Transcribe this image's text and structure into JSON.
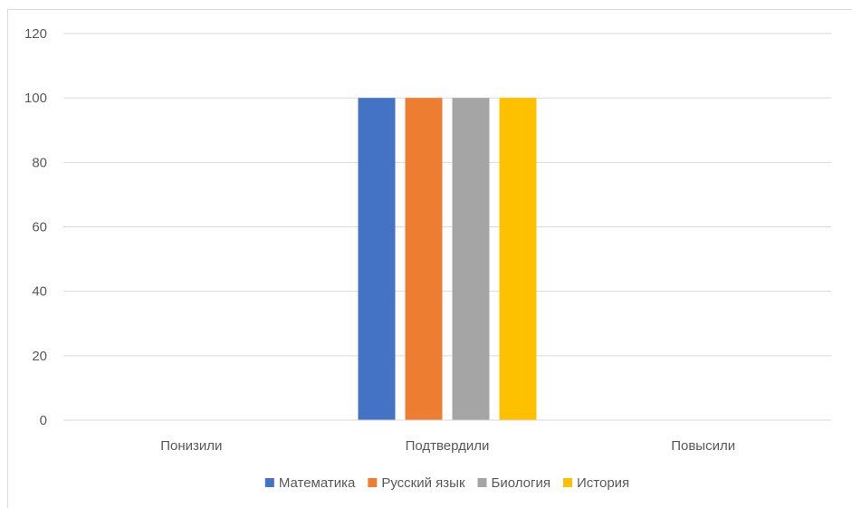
{
  "chart_data": {
    "type": "bar",
    "categories": [
      "Понизили",
      "Подтвердили",
      "Повысили"
    ],
    "series": [
      {
        "name": "Математика",
        "values": [
          0,
          100,
          0
        ],
        "color": "#4472C4"
      },
      {
        "name": "Русский язык",
        "values": [
          0,
          100,
          0
        ],
        "color": "#ED7D31"
      },
      {
        "name": "Биология",
        "values": [
          0,
          100,
          0
        ],
        "color": "#A5A5A5"
      },
      {
        "name": "История",
        "values": [
          0,
          100,
          0
        ],
        "color": "#FFC000"
      }
    ],
    "title": "",
    "xlabel": "",
    "ylabel": "",
    "ylim": [
      0,
      120
    ],
    "yticks": [
      0,
      20,
      40,
      60,
      80,
      100,
      120
    ],
    "grid": true,
    "legend_position": "bottom"
  }
}
